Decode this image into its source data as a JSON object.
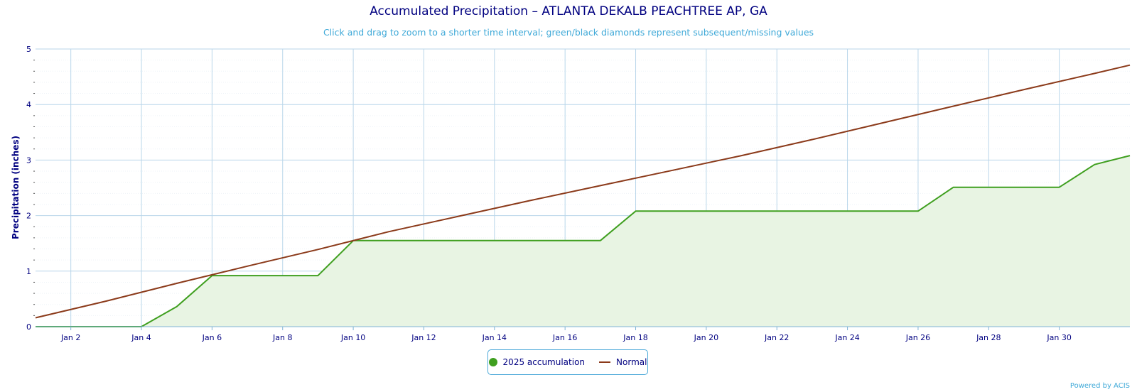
{
  "chart_data": {
    "type": "area",
    "title": "Accumulated Precipitation – ATLANTA DEKALB PEACHTREE AP, GA",
    "subtitle": "Click and drag to zoom to a shorter time interval; green/black diamonds represent subsequent/missing values",
    "ylabel": "Precipitation (inches)",
    "xlabel": "",
    "ylim": [
      0,
      5
    ],
    "xlim": [
      1,
      32
    ],
    "yticks": [
      "0",
      "1",
      "2",
      "3",
      "4",
      "5"
    ],
    "xtick_days": [
      2,
      4,
      6,
      8,
      10,
      12,
      14,
      16,
      18,
      20,
      22,
      24,
      26,
      28,
      30
    ],
    "xtick_labels": [
      "Jan 2",
      "Jan 4",
      "Jan 6",
      "Jan 8",
      "Jan 10",
      "Jan 12",
      "Jan 14",
      "Jan 16",
      "Jan 18",
      "Jan 20",
      "Jan 22",
      "Jan 24",
      "Jan 26",
      "Jan 28",
      "Jan 30"
    ],
    "grid": true,
    "legend_position": "bottom-center",
    "series": [
      {
        "name": "2025 accumulation",
        "color": "#3f9f1f",
        "fill": "#e8f4e3",
        "x": [
          1,
          2,
          3,
          4,
          5,
          6,
          7,
          8,
          9,
          10,
          11,
          12,
          13,
          14,
          15,
          16,
          17,
          18,
          19,
          20,
          21,
          22,
          23,
          24,
          25,
          26,
          27,
          28,
          29,
          30,
          31,
          32
        ],
        "y": [
          0,
          0,
          0,
          0,
          0.36,
          0.92,
          0.92,
          0.92,
          0.92,
          1.55,
          1.55,
          1.55,
          1.55,
          1.55,
          1.55,
          1.55,
          1.55,
          2.08,
          2.08,
          2.08,
          2.08,
          2.08,
          2.08,
          2.08,
          2.08,
          2.08,
          2.51,
          2.51,
          2.51,
          2.51,
          2.92,
          3.08
        ]
      },
      {
        "name": "Normal",
        "color": "#8b3a1a",
        "x": [
          1,
          3,
          5,
          7,
          9,
          11,
          13,
          15,
          17,
          19,
          21,
          23,
          25,
          27,
          29,
          31,
          32
        ],
        "y": [
          0.16,
          0.46,
          0.78,
          1.09,
          1.39,
          1.71,
          1.99,
          2.27,
          2.54,
          2.81,
          3.08,
          3.37,
          3.67,
          3.97,
          4.27,
          4.56,
          4.71
        ]
      }
    ]
  },
  "legend": {
    "series1_label": "2025 accumulation",
    "series2_label": "Normal"
  },
  "credit": "Powered by ACIS"
}
